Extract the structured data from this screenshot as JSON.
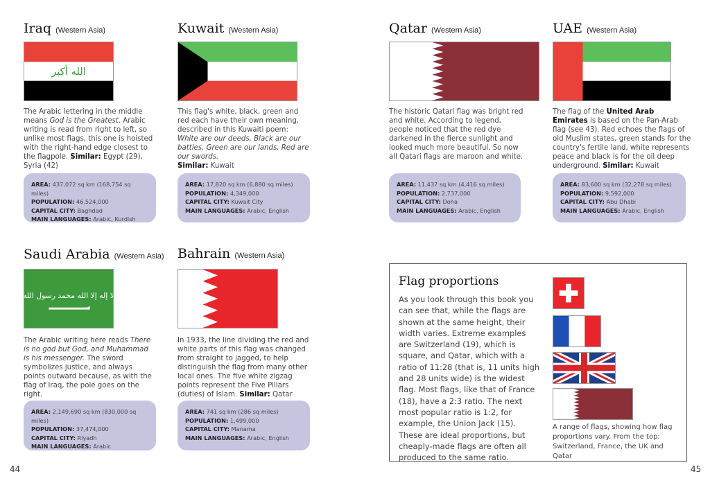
{
  "countries": [
    {
      "name": "Iraq",
      "region": "(Western Asia)",
      "desc_parts": [
        "The Arabic lettering in the middle means ",
        "God is the Greatest",
        ". Arabic writing is read from right to left, so unlike most flags, this one is hoisted with the right-hand edge closest to the flagpole. "
      ],
      "similar_label": "Similar:",
      "similar": "Egypt (29), Syria (42)",
      "area": "437,072 sq km (168,754 sq miles)",
      "population": "46,524,000",
      "capital": "Baghdad",
      "languages": "Arabic, Kurdish",
      "flag_text": "الله أكبر"
    },
    {
      "name": "Kuwait",
      "region": "(Western Asia)",
      "desc_parts": [
        "This flag's white, black, green and red each have their own meaning, described in this Kuwaiti poem: ",
        "White are our deeds, Black are our battles, Green are our lands, Red are our swords.",
        ""
      ],
      "similar_label": "Similar:",
      "similar": "Kuwait",
      "area": "17,820 sq km (6,880 sq miles)",
      "population": "4,349,000",
      "capital": "Kuwait City",
      "languages": "Arabic, English"
    },
    {
      "name": "Qatar",
      "region": "(Western Asia)",
      "desc_parts": [
        "The historic Qatari flag was bright red and white. According to legend, people noticed that the red dye darkened in the fierce sunlight and looked much more beautiful. So now all Qatari flags are maroon and white.",
        "",
        ""
      ],
      "area": "11,437 sq km (4,416 sq miles)",
      "population": "2,737,000",
      "capital": "Doha",
      "languages": "Arabic, English"
    },
    {
      "name": "UAE",
      "region": "(Western Asia)",
      "desc_parts": [
        "The flag of the ",
        "United Arab Emirates",
        " is based on the Pan-Arab flag (see 43). Red echoes the flags of old Muslim states, green stands for the country's fertile land, white represents peace and black is for the oil deep underground. "
      ],
      "similar_label": "Similar:",
      "similar": "Kuwait",
      "area": "83,600 sq km (32,278 sq miles)",
      "population": "9,592,000",
      "capital": "Abu Dhabi",
      "languages": "Arabic, English"
    },
    {
      "name": "Saudi Arabia",
      "region": "(Western Asia)",
      "desc_parts": [
        "The Arabic writing here reads ",
        "There is no god but God, and Muhammad is his messenger.",
        "",
        " The sword symbolizes justice, and always points outward because, as with the flag of Iraq, the pole goes on the right."
      ],
      "area": "2,149,690 sq km (830,000 sq miles)",
      "population": "37,474,000",
      "capital": "Riyadh",
      "languages": "Arabic",
      "flag_text": "لا إله إلا الله محمد رسول الله"
    },
    {
      "name": "Bahrain",
      "region": "(Western Asia)",
      "desc_parts": [
        "In 1933, the line dividing the red and white parts of this flag was changed from straight to jagged, to help distinguish the flag from many other local ones. The five white zigzag points represent the Five Pillars (duties) of Islam. ",
        "",
        ""
      ],
      "similar_label": "Similar:",
      "similar": "Qatar",
      "area": "741 sq km (286 sq miles)",
      "population": "1,499,000",
      "capital": "Manama",
      "languages": "Arabic, English"
    }
  ],
  "labels": {
    "area": "AREA:",
    "population": "POPULATION:",
    "capital": "CAPITAL CITY:",
    "languages": "MAIN LANGUAGES:"
  },
  "proportions": {
    "title": "Flag proportions",
    "text": "As you look through this book you can see that, while the flags are shown at the same height, their width varies. Extreme examples are Switzerland (19), which is square, and Qatar, which with a ratio of 11:28 (that is, 11 units high and 28 units wide) is the widest flag. Most flags, like that of France (18), have a 2:3 ratio. The next most popular ratio is 1:2, for example, the Union Jack (15). These are ideal proportions, but cheaply-made flags are often all produced to the same ratio.",
    "caption": "A range of flags, showing how flag proportions vary. From the top: Switzerland, France, the UK and Qatar"
  },
  "page_numbers": {
    "left": "44",
    "right": "45"
  },
  "colors": {
    "info_box": "#c7c4e0",
    "red": "#e8423a",
    "green": "#5cbf5c",
    "maroon": "#8c2f39",
    "saudi_green": "#3d9a3d",
    "black": "#000000"
  }
}
